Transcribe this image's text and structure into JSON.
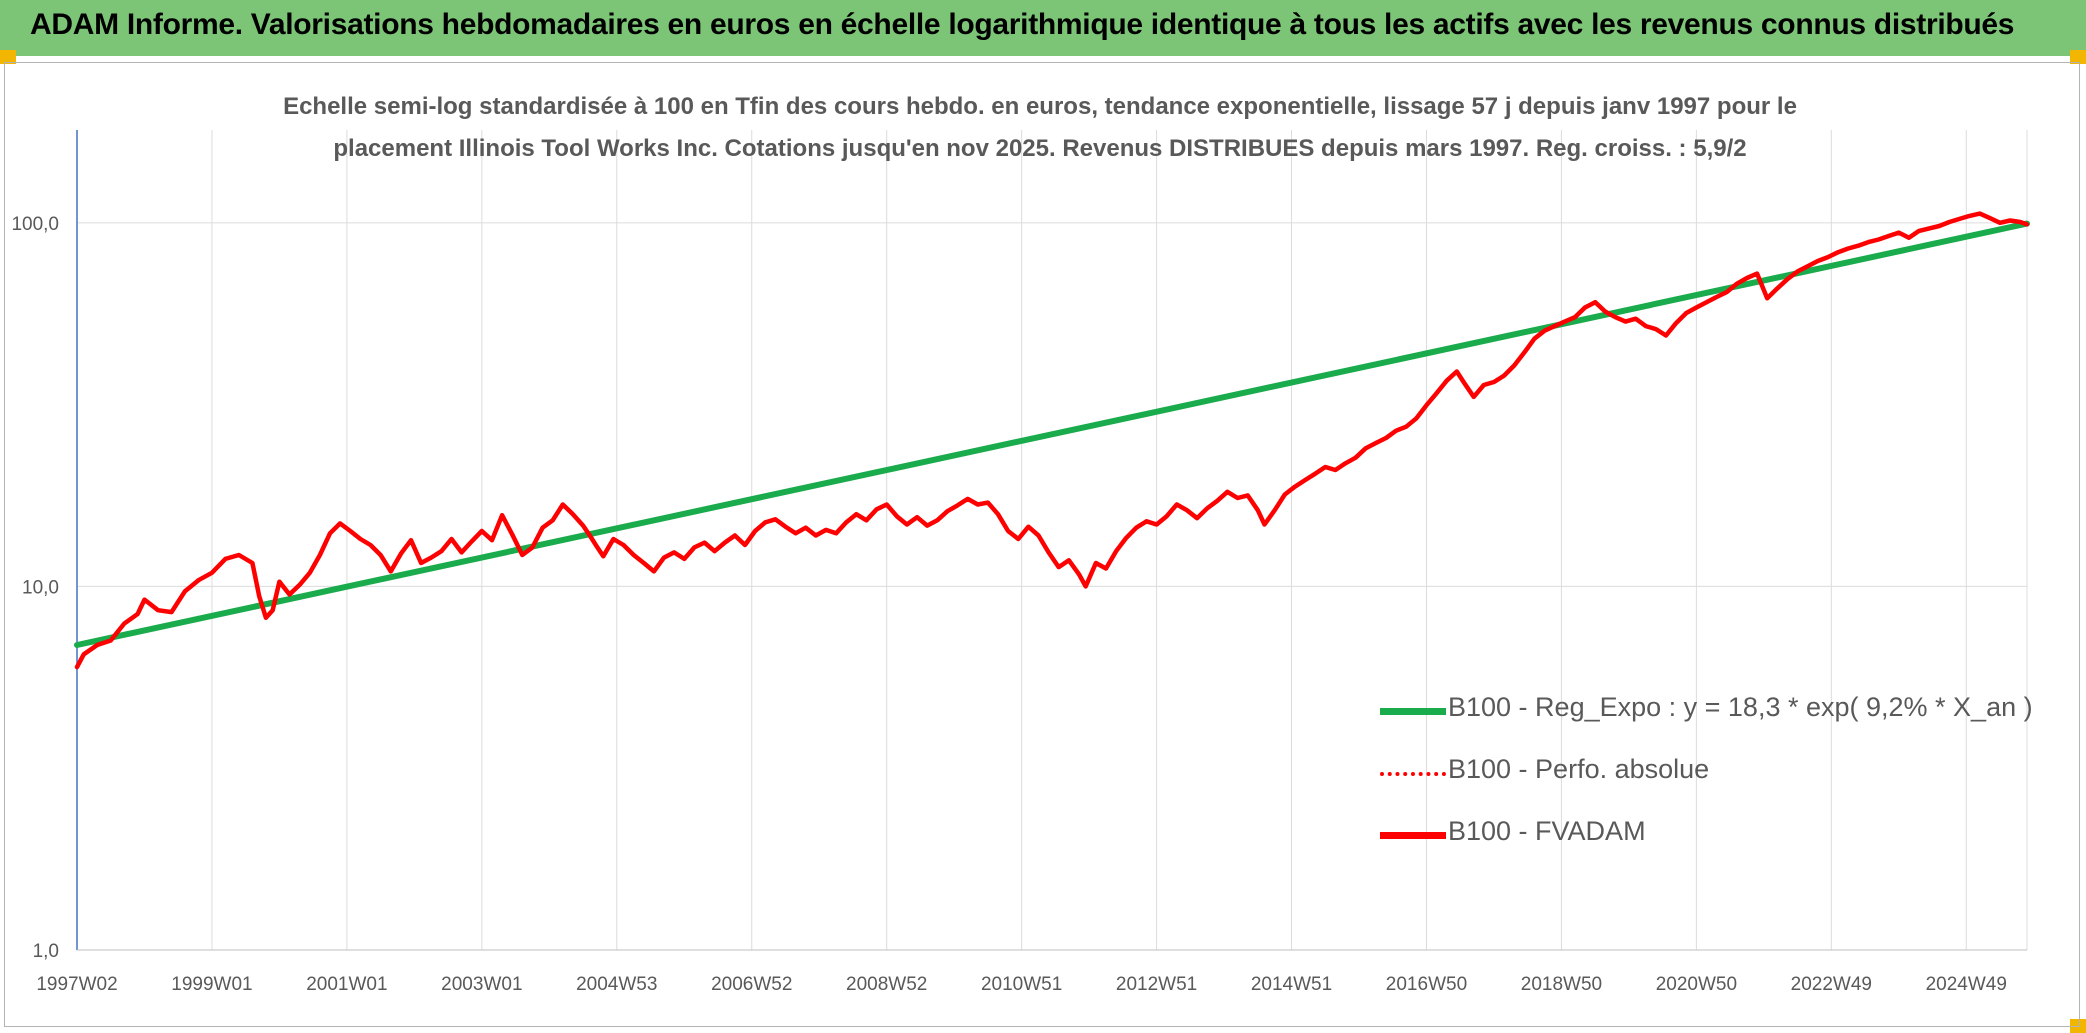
{
  "header": {
    "title": "ADAM Informe. Valorisations hebdomadaires en euros en échelle logarithmique identique à tous les actifs avec les revenus connus distribués"
  },
  "chart_data": {
    "type": "line",
    "title_line1": "Echelle semi-log standardisée à 100 en Tfin des cours hebdo. en euros, tendance exponentielle, lissage 57 j depuis janv 1997 pour le",
    "title_line2": "placement Illinois Tool Works Inc. Cotations jusqu'en nov 2025. Revenus DISTRIBUES depuis mars 1997. Reg. croiss. : 5,9/2",
    "y_scale": "log",
    "ylim": [
      1,
      180
    ],
    "y_ticks": [
      {
        "value": 100,
        "label": "100,0"
      },
      {
        "value": 10,
        "label": "10,0"
      },
      {
        "value": 1,
        "label": "1,0"
      }
    ],
    "xlim": [
      1997.0,
      2025.9
    ],
    "x_ticks": [
      {
        "value": 1997.0,
        "label": "1997W02"
      },
      {
        "value": 1999.0,
        "label": "1999W01"
      },
      {
        "value": 2001.0,
        "label": "2001W01"
      },
      {
        "value": 2003.0,
        "label": "2003W01"
      },
      {
        "value": 2005.0,
        "label": "2004W53"
      },
      {
        "value": 2007.0,
        "label": "2006W52"
      },
      {
        "value": 2009.0,
        "label": "2008W52"
      },
      {
        "value": 2011.0,
        "label": "2010W51"
      },
      {
        "value": 2013.0,
        "label": "2012W51"
      },
      {
        "value": 2015.0,
        "label": "2014W51"
      },
      {
        "value": 2017.0,
        "label": "2016W50"
      },
      {
        "value": 2019.0,
        "label": "2018W50"
      },
      {
        "value": 2021.0,
        "label": "2020W50"
      },
      {
        "value": 2023.0,
        "label": "2022W49"
      },
      {
        "value": 2025.0,
        "label": "2024W49"
      }
    ],
    "legend_position": "bottom-right",
    "series": [
      {
        "name": "B100 - Reg_Expo : y = 18,3 * exp( 9,2% *  X_an )",
        "color": "#1aab4c",
        "style": "solid",
        "points": [
          [
            1997.0,
            6.9
          ],
          [
            2025.9,
            99.5
          ]
        ]
      },
      {
        "name": "B100 - Perfo. absolue",
        "color": "#ff0000",
        "style": "dotted",
        "points": []
      },
      {
        "name": "B100 - FVADAM",
        "color": "#ff0000",
        "style": "solid",
        "points": [
          [
            1997.0,
            6.0
          ],
          [
            1997.1,
            6.5
          ],
          [
            1997.3,
            6.9
          ],
          [
            1997.5,
            7.1
          ],
          [
            1997.7,
            7.9
          ],
          [
            1997.9,
            8.4
          ],
          [
            1998.0,
            9.2
          ],
          [
            1998.2,
            8.6
          ],
          [
            1998.4,
            8.5
          ],
          [
            1998.6,
            9.7
          ],
          [
            1998.8,
            10.4
          ],
          [
            1999.0,
            10.9
          ],
          [
            1999.2,
            11.9
          ],
          [
            1999.4,
            12.2
          ],
          [
            1999.6,
            11.6
          ],
          [
            1999.7,
            9.4
          ],
          [
            1999.8,
            8.2
          ],
          [
            1999.9,
            8.6
          ],
          [
            2000.0,
            10.3
          ],
          [
            2000.15,
            9.5
          ],
          [
            2000.3,
            10.1
          ],
          [
            2000.45,
            10.9
          ],
          [
            2000.6,
            12.2
          ],
          [
            2000.75,
            14.0
          ],
          [
            2000.9,
            14.9
          ],
          [
            2001.05,
            14.2
          ],
          [
            2001.2,
            13.5
          ],
          [
            2001.35,
            13.0
          ],
          [
            2001.5,
            12.2
          ],
          [
            2001.65,
            11.0
          ],
          [
            2001.8,
            12.3
          ],
          [
            2001.95,
            13.4
          ],
          [
            2002.1,
            11.6
          ],
          [
            2002.25,
            12.0
          ],
          [
            2002.4,
            12.5
          ],
          [
            2002.55,
            13.5
          ],
          [
            2002.7,
            12.4
          ],
          [
            2002.85,
            13.3
          ],
          [
            2003.0,
            14.2
          ],
          [
            2003.15,
            13.4
          ],
          [
            2003.3,
            15.7
          ],
          [
            2003.45,
            13.9
          ],
          [
            2003.6,
            12.2
          ],
          [
            2003.75,
            12.8
          ],
          [
            2003.9,
            14.5
          ],
          [
            2004.05,
            15.2
          ],
          [
            2004.2,
            16.8
          ],
          [
            2004.35,
            15.8
          ],
          [
            2004.5,
            14.7
          ],
          [
            2004.6,
            13.8
          ],
          [
            2004.7,
            12.9
          ],
          [
            2004.8,
            12.1
          ],
          [
            2004.95,
            13.5
          ],
          [
            2005.1,
            13.0
          ],
          [
            2005.25,
            12.2
          ],
          [
            2005.4,
            11.6
          ],
          [
            2005.55,
            11.0
          ],
          [
            2005.7,
            12.0
          ],
          [
            2005.85,
            12.4
          ],
          [
            2006.0,
            11.9
          ],
          [
            2006.15,
            12.8
          ],
          [
            2006.3,
            13.2
          ],
          [
            2006.45,
            12.5
          ],
          [
            2006.6,
            13.2
          ],
          [
            2006.75,
            13.8
          ],
          [
            2006.9,
            13.0
          ],
          [
            2007.05,
            14.2
          ],
          [
            2007.2,
            15.0
          ],
          [
            2007.35,
            15.3
          ],
          [
            2007.5,
            14.6
          ],
          [
            2007.65,
            14.0
          ],
          [
            2007.8,
            14.5
          ],
          [
            2007.95,
            13.8
          ],
          [
            2008.1,
            14.3
          ],
          [
            2008.25,
            14.0
          ],
          [
            2008.4,
            15.0
          ],
          [
            2008.55,
            15.8
          ],
          [
            2008.7,
            15.2
          ],
          [
            2008.85,
            16.3
          ],
          [
            2009.0,
            16.8
          ],
          [
            2009.15,
            15.6
          ],
          [
            2009.3,
            14.8
          ],
          [
            2009.45,
            15.5
          ],
          [
            2009.6,
            14.7
          ],
          [
            2009.75,
            15.2
          ],
          [
            2009.9,
            16.1
          ],
          [
            2010.05,
            16.7
          ],
          [
            2010.2,
            17.4
          ],
          [
            2010.35,
            16.8
          ],
          [
            2010.5,
            17.0
          ],
          [
            2010.65,
            15.8
          ],
          [
            2010.8,
            14.2
          ],
          [
            2010.95,
            13.5
          ],
          [
            2011.1,
            14.6
          ],
          [
            2011.25,
            13.8
          ],
          [
            2011.4,
            12.4
          ],
          [
            2011.55,
            11.3
          ],
          [
            2011.7,
            11.8
          ],
          [
            2011.85,
            10.8
          ],
          [
            2011.95,
            10.0
          ],
          [
            2012.1,
            11.6
          ],
          [
            2012.25,
            11.2
          ],
          [
            2012.4,
            12.5
          ],
          [
            2012.55,
            13.6
          ],
          [
            2012.7,
            14.5
          ],
          [
            2012.85,
            15.1
          ],
          [
            2013.0,
            14.8
          ],
          [
            2013.15,
            15.6
          ],
          [
            2013.3,
            16.8
          ],
          [
            2013.45,
            16.2
          ],
          [
            2013.6,
            15.4
          ],
          [
            2013.75,
            16.4
          ],
          [
            2013.9,
            17.2
          ],
          [
            2014.05,
            18.2
          ],
          [
            2014.2,
            17.5
          ],
          [
            2014.35,
            17.8
          ],
          [
            2014.5,
            16.2
          ],
          [
            2014.6,
            14.8
          ],
          [
            2014.75,
            16.2
          ],
          [
            2014.9,
            17.9
          ],
          [
            2015.05,
            18.8
          ],
          [
            2015.2,
            19.6
          ],
          [
            2015.35,
            20.4
          ],
          [
            2015.5,
            21.3
          ],
          [
            2015.65,
            20.9
          ],
          [
            2015.8,
            21.8
          ],
          [
            2015.95,
            22.6
          ],
          [
            2016.1,
            24.0
          ],
          [
            2016.25,
            24.8
          ],
          [
            2016.4,
            25.6
          ],
          [
            2016.55,
            26.8
          ],
          [
            2016.7,
            27.5
          ],
          [
            2016.85,
            29.0
          ],
          [
            2017.0,
            31.5
          ],
          [
            2017.15,
            34.0
          ],
          [
            2017.3,
            36.8
          ],
          [
            2017.45,
            39.0
          ],
          [
            2017.55,
            36.5
          ],
          [
            2017.7,
            33.2
          ],
          [
            2017.85,
            35.8
          ],
          [
            2018.0,
            36.5
          ],
          [
            2018.15,
            38.0
          ],
          [
            2018.3,
            40.5
          ],
          [
            2018.45,
            44.0
          ],
          [
            2018.6,
            48.0
          ],
          [
            2018.75,
            50.5
          ],
          [
            2018.9,
            52.0
          ],
          [
            2019.05,
            53.5
          ],
          [
            2019.2,
            55.0
          ],
          [
            2019.35,
            58.5
          ],
          [
            2019.5,
            60.5
          ],
          [
            2019.65,
            57.0
          ],
          [
            2019.8,
            55.0
          ],
          [
            2019.95,
            53.5
          ],
          [
            2020.1,
            54.5
          ],
          [
            2020.25,
            52.0
          ],
          [
            2020.4,
            51.0
          ],
          [
            2020.55,
            49.0
          ],
          [
            2020.7,
            53.0
          ],
          [
            2020.85,
            56.5
          ],
          [
            2021.0,
            58.5
          ],
          [
            2021.15,
            60.5
          ],
          [
            2021.3,
            62.5
          ],
          [
            2021.45,
            64.5
          ],
          [
            2021.6,
            68.0
          ],
          [
            2021.75,
            70.5
          ],
          [
            2021.9,
            72.5
          ],
          [
            2022.05,
            62.0
          ],
          [
            2022.2,
            66.0
          ],
          [
            2022.35,
            70.0
          ],
          [
            2022.5,
            73.5
          ],
          [
            2022.65,
            76.0
          ],
          [
            2022.8,
            78.5
          ],
          [
            2022.95,
            80.5
          ],
          [
            2023.1,
            83.0
          ],
          [
            2023.25,
            85.0
          ],
          [
            2023.4,
            86.5
          ],
          [
            2023.55,
            88.5
          ],
          [
            2023.7,
            90.0
          ],
          [
            2023.85,
            92.0
          ],
          [
            2024.0,
            94.0
          ],
          [
            2024.15,
            91.0
          ],
          [
            2024.3,
            95.0
          ],
          [
            2024.45,
            96.5
          ],
          [
            2024.6,
            98.0
          ],
          [
            2024.75,
            100.5
          ],
          [
            2024.9,
            102.5
          ],
          [
            2025.05,
            104.5
          ],
          [
            2025.2,
            106.0
          ],
          [
            2025.35,
            103.0
          ],
          [
            2025.5,
            100.0
          ],
          [
            2025.65,
            101.5
          ],
          [
            2025.8,
            100.5
          ],
          [
            2025.9,
            99.0
          ]
        ]
      }
    ]
  }
}
